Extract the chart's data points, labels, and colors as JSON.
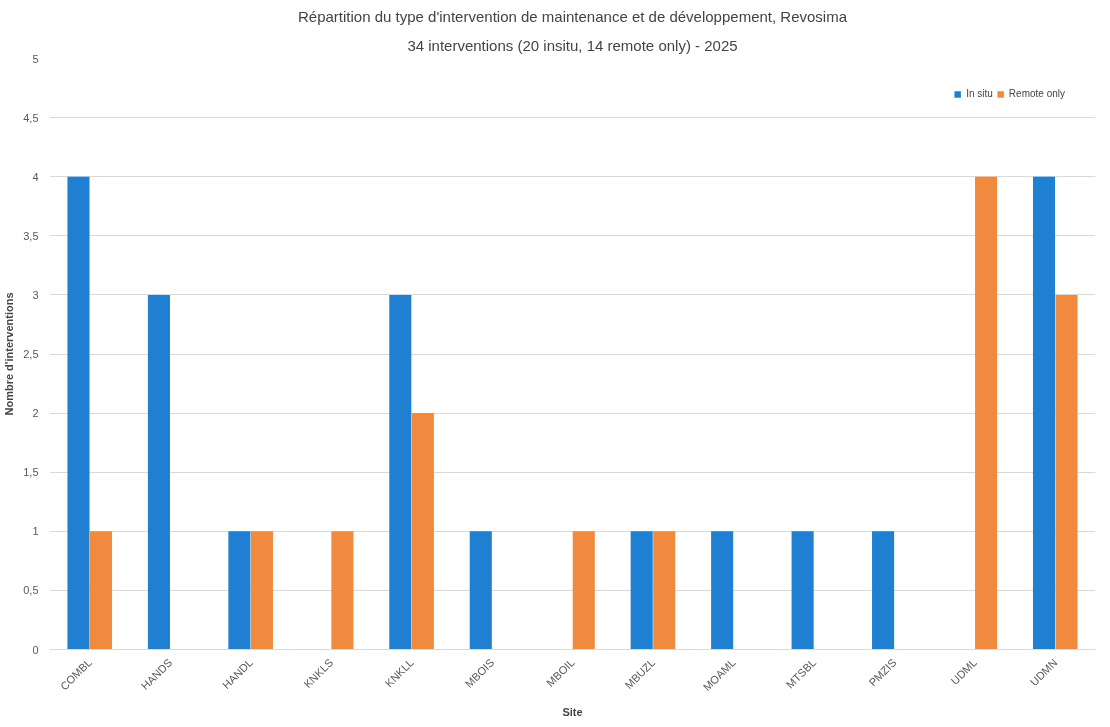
{
  "chart_data": {
    "type": "bar",
    "title": "Répartition du type d'intervention de maintenance et de développement, Revosima",
    "subtitle": "34 interventions (20 insitu, 14 remote only) - 2025",
    "xlabel": "Site",
    "ylabel": "Nombre d'interventions",
    "categories": [
      "COMBL",
      "HANDS",
      "HANDL",
      "KNKLS",
      "KNKLL",
      "MBOIS",
      "MBOIL",
      "MBUZL",
      "MOAML",
      "MTSBL",
      "PMZIS",
      "UDML",
      "UDMN"
    ],
    "series": [
      {
        "name": "In situ",
        "color": "#1f7fd1",
        "values": [
          4,
          3,
          1,
          0,
          3,
          1,
          0,
          1,
          1,
          1,
          1,
          0,
          4
        ]
      },
      {
        "name": "Remote only",
        "color": "#ef8a3f",
        "values": [
          1,
          0,
          1,
          1,
          2,
          0,
          1,
          1,
          0,
          0,
          0,
          4,
          3
        ]
      }
    ],
    "ylim": [
      0,
      5
    ],
    "yticks": [
      0,
      {
        "value": 0.5,
        "label": "0,5"
      },
      1,
      {
        "value": 1.5,
        "label": "1,5"
      },
      2,
      {
        "value": 2.5,
        "label": "2,5"
      },
      3,
      {
        "value": 3.5,
        "label": "3,5"
      },
      4,
      {
        "value": 4.5,
        "label": "4,5"
      },
      5
    ],
    "grid": "y",
    "legend": "top right"
  }
}
